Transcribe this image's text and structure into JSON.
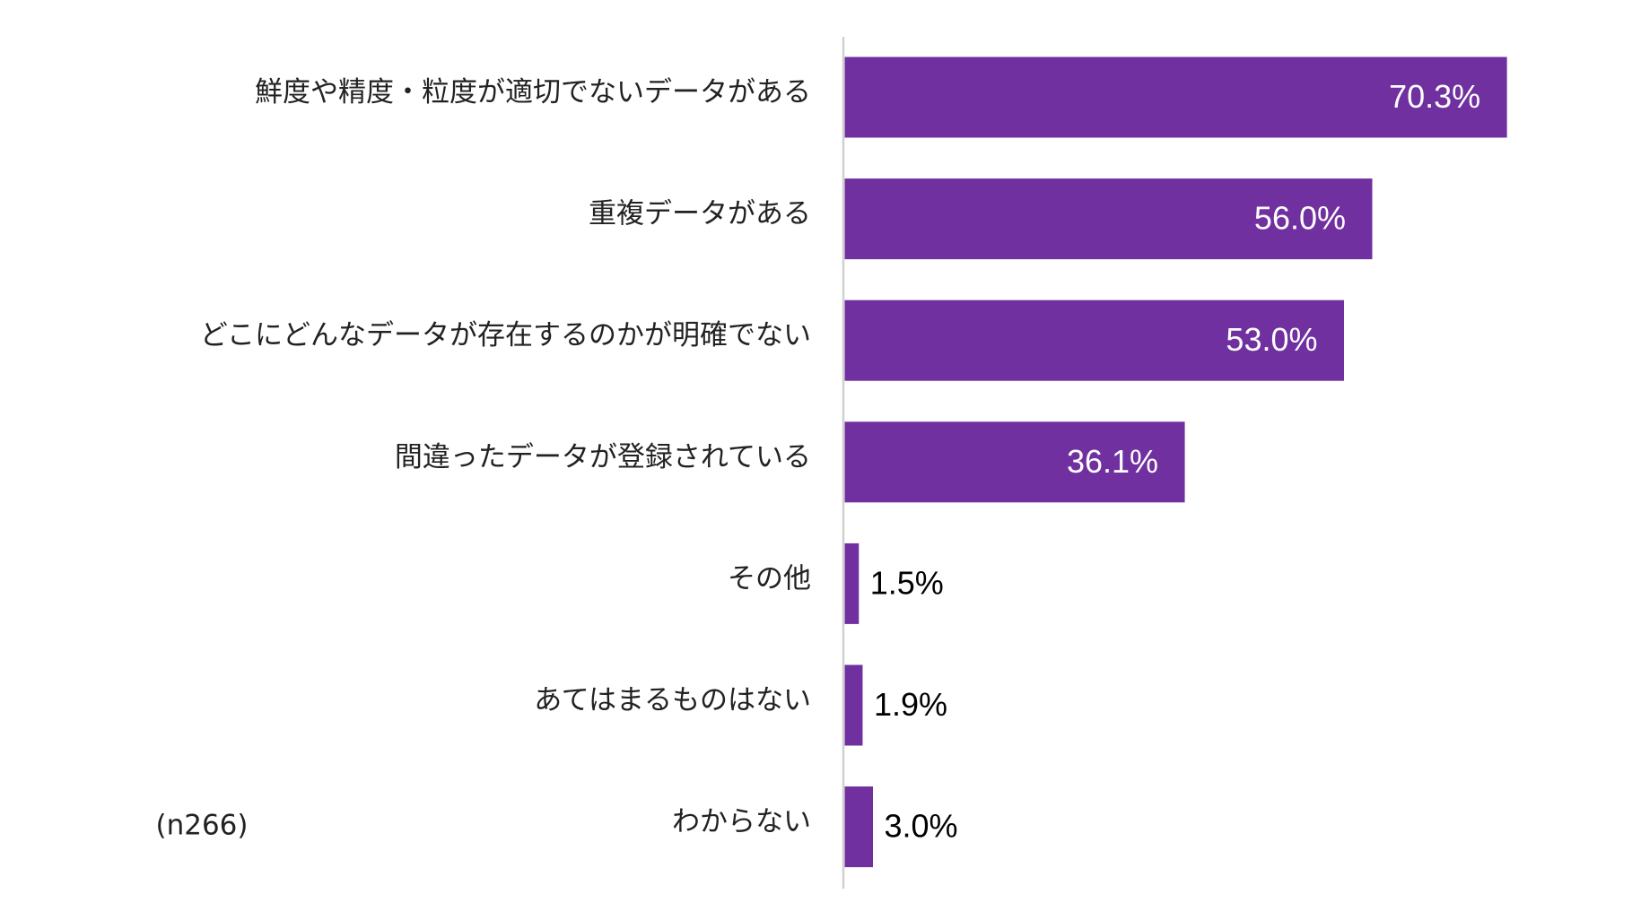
{
  "chart_data": {
    "type": "bar",
    "orientation": "horizontal",
    "categories": [
      "鮮度や精度・粒度が適切でないデータがある",
      "重複データがある",
      "どこにどんなデータが存在するのかが明確でない",
      "間違ったデータが登録されている",
      "その他",
      "あてはまるものはない",
      "わからない"
    ],
    "values": [
      70.3,
      56.0,
      53.0,
      36.1,
      1.5,
      1.9,
      3.0
    ],
    "value_labels": [
      "70.3%",
      "56.0%",
      "53.0%",
      "36.1%",
      "1.5%",
      "1.9%",
      "3.0%"
    ],
    "color": "#7030a0",
    "note": "(n266)"
  }
}
